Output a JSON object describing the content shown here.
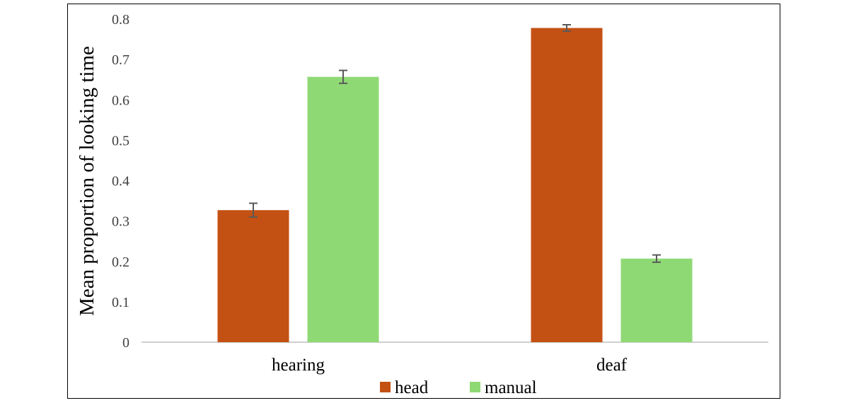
{
  "chart_data": {
    "type": "bar",
    "title": "",
    "xlabel": "",
    "ylabel": "Mean proportion of looking time",
    "categories": [
      "hearing",
      "deaf"
    ],
    "series": [
      {
        "name": "head",
        "color": "#C45114",
        "values": [
          0.327,
          0.778
        ],
        "errors": [
          0.017,
          0.008
        ]
      },
      {
        "name": "manual",
        "color": "#8FD975",
        "values": [
          0.657,
          0.207
        ],
        "errors": [
          0.016,
          0.009
        ]
      }
    ],
    "ylim": [
      0,
      0.8
    ],
    "yticks": [
      "0",
      "0.1",
      "0.2",
      "0.3",
      "0.4",
      "0.5",
      "0.6",
      "0.7",
      "0.8"
    ],
    "grid": false,
    "legend_position": "bottom"
  }
}
